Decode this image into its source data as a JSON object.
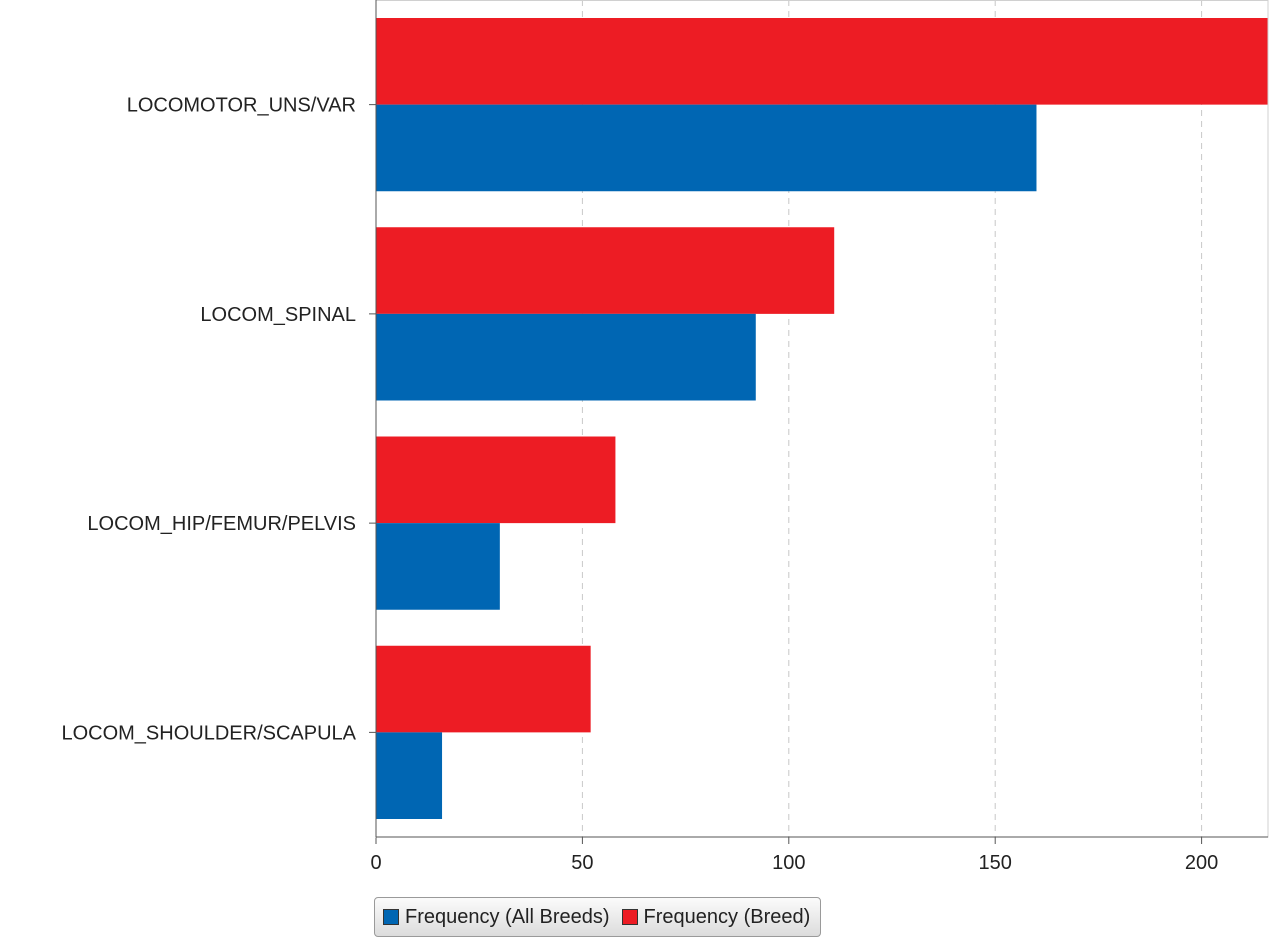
{
  "chart_data": {
    "type": "bar",
    "orientation": "horizontal",
    "categories": [
      "LOCOMOTOR_UNS/VAR",
      "LOCOM_SPINAL",
      "LOCOM_HIP/FEMUR/PELVIS",
      "LOCOM_SHOULDER/SCAPULA"
    ],
    "series": [
      {
        "name": "Frequency (Breed)",
        "color": "#ed1c24",
        "values": [
          216,
          111,
          58,
          52
        ]
      },
      {
        "name": "Frequency (All Breeds)",
        "color": "#0066b3",
        "values": [
          160,
          92,
          30,
          16
        ]
      }
    ],
    "xlim": [
      0,
      217
    ],
    "xticks": [
      0,
      50,
      100,
      150,
      200
    ],
    "grid": "x-dashed",
    "legend_position": "bottom-left",
    "title": "",
    "xlabel": "",
    "ylabel": ""
  },
  "legend": {
    "items": [
      {
        "label": "Frequency (All Breeds)",
        "color": "#0066b3"
      },
      {
        "label": "Frequency (Breed)",
        "color": "#ed1c24"
      }
    ]
  }
}
